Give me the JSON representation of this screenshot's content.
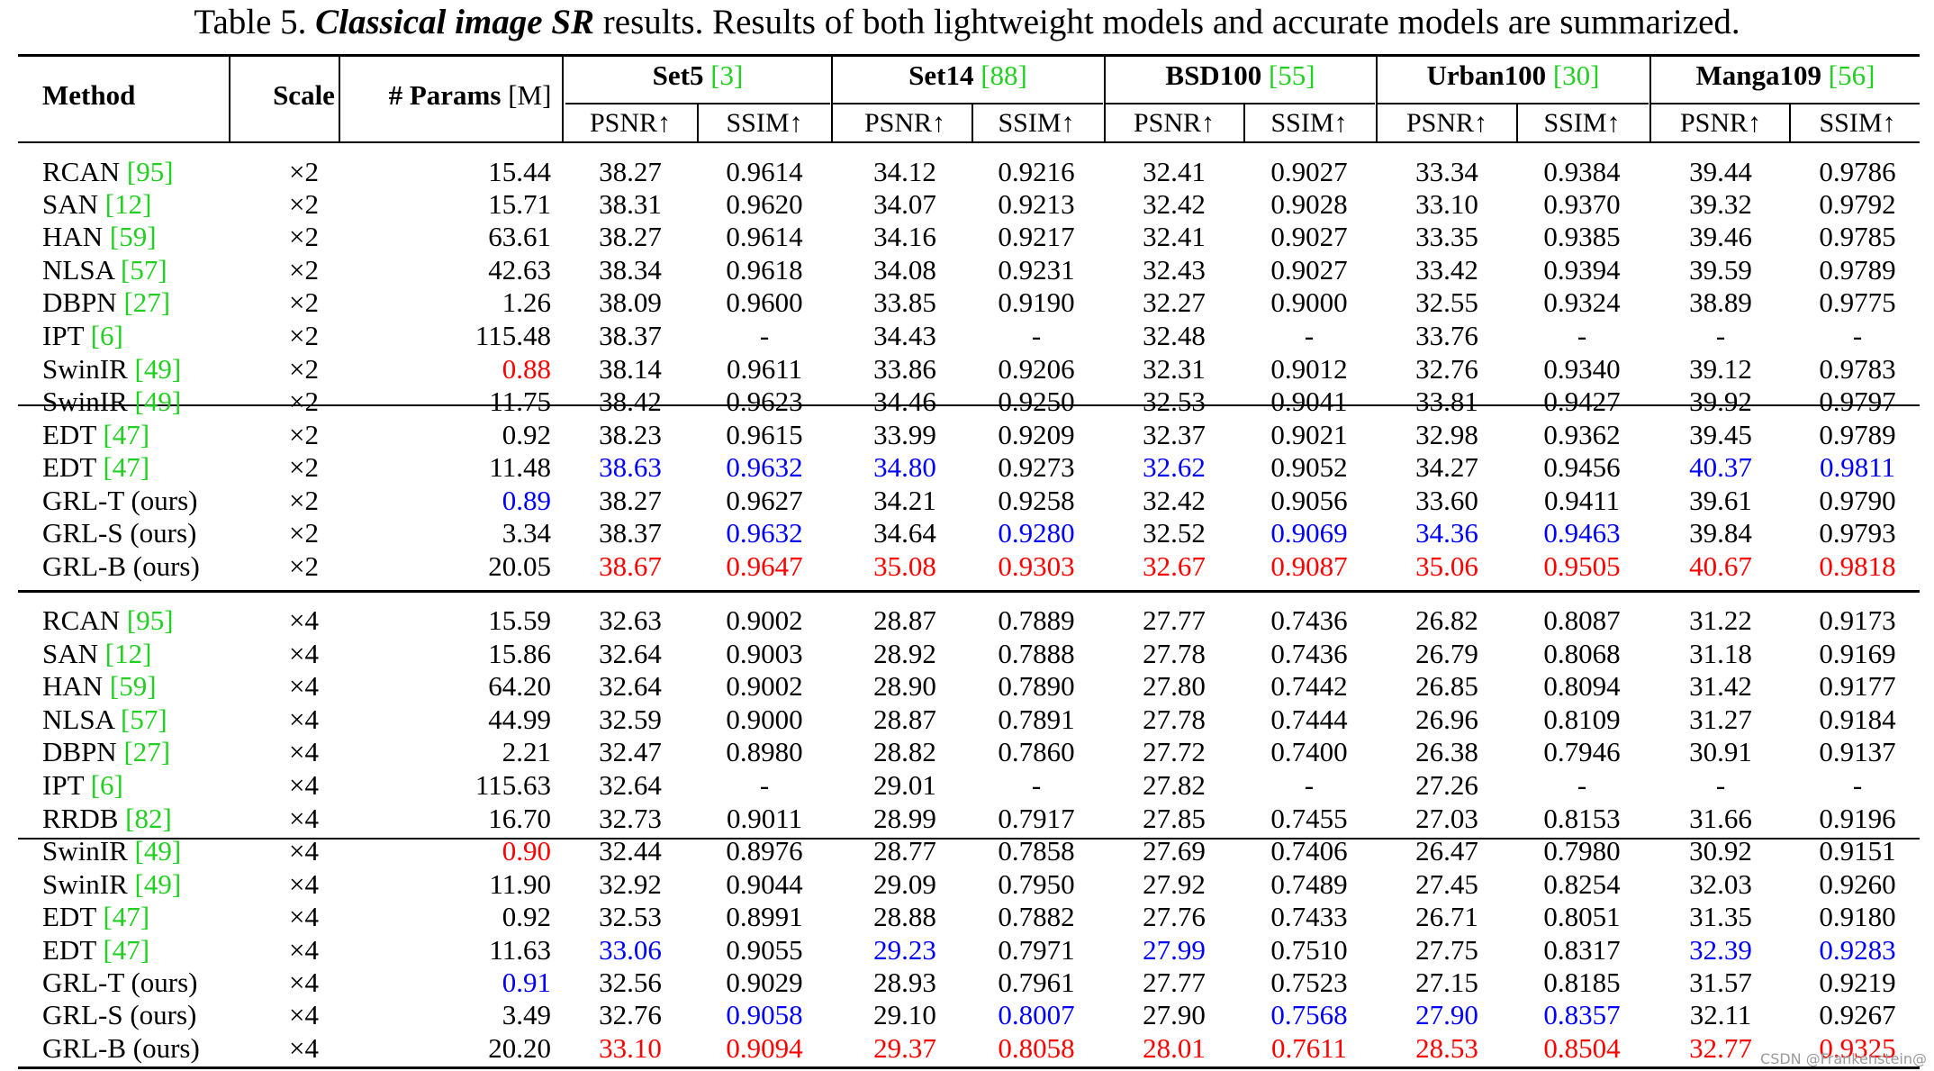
{
  "caption": {
    "prefix": "Table 5. ",
    "emphasis": "Classical image SR",
    "suffix": " results. Results of both lightweight models and accurate models are summarized."
  },
  "header": {
    "method": "Method",
    "scale": "Scale",
    "params_label": "# Params",
    "params_unit": " [M]",
    "datasets": [
      {
        "name": "Set5",
        "cite": "[3]"
      },
      {
        "name": "Set14",
        "cite": "[88]"
      },
      {
        "name": "BSD100",
        "cite": "[55]"
      },
      {
        "name": "Urban100",
        "cite": "[30]"
      },
      {
        "name": "Manga109",
        "cite": "[56]"
      }
    ],
    "psnr": "PSNR↑",
    "ssim": "SSIM↑"
  },
  "colors": {
    "best": "#ff0000",
    "second": "#0000ff",
    "cite": "#22d022"
  },
  "rows": [
    {
      "name": "RCAN ",
      "cite": "[95]",
      "scale": "×2",
      "params": "15.44",
      "vals": [
        "38.27",
        "0.9614",
        "34.12",
        "0.9216",
        "32.41",
        "0.9027",
        "33.34",
        "0.9384",
        "39.44",
        "0.9786"
      ]
    },
    {
      "name": "SAN ",
      "cite": "[12]",
      "scale": "×2",
      "params": "15.71",
      "vals": [
        "38.31",
        "0.9620",
        "34.07",
        "0.9213",
        "32.42",
        "0.9028",
        "33.10",
        "0.9370",
        "39.32",
        "0.9792"
      ]
    },
    {
      "name": "HAN ",
      "cite": "[59]",
      "scale": "×2",
      "params": "63.61",
      "vals": [
        "38.27",
        "0.9614",
        "34.16",
        "0.9217",
        "32.41",
        "0.9027",
        "33.35",
        "0.9385",
        "39.46",
        "0.9785"
      ]
    },
    {
      "name": "NLSA ",
      "cite": "[57]",
      "scale": "×2",
      "params": "42.63",
      "vals": [
        "38.34",
        "0.9618",
        "34.08",
        "0.9231",
        "32.43",
        "0.9027",
        "33.42",
        "0.9394",
        "39.59",
        "0.9789"
      ]
    },
    {
      "name": "DBPN ",
      "cite": "[27]",
      "scale": "×2",
      "params": "1.26",
      "vals": [
        "38.09",
        "0.9600",
        "33.85",
        "0.9190",
        "32.27",
        "0.9000",
        "32.55",
        "0.9324",
        "38.89",
        "0.9775"
      ]
    },
    {
      "name": "IPT ",
      "cite": "[6]",
      "scale": "×2",
      "params": "115.48",
      "vals": [
        "38.37",
        "-",
        "34.43",
        "-",
        "32.48",
        "-",
        "33.76",
        "-",
        "-",
        "-"
      ]
    },
    {
      "name": "SwinIR ",
      "cite": "[49]",
      "scale": "×2",
      "params": "0.88",
      "pc": "red",
      "vals": [
        "38.14",
        "0.9611",
        "33.86",
        "0.9206",
        "32.31",
        "0.9012",
        "32.76",
        "0.9340",
        "39.12",
        "0.9783"
      ]
    },
    {
      "name": "SwinIR ",
      "cite": "[49]",
      "scale": "×2",
      "params": "11.75",
      "vals": [
        "38.42",
        "0.9623",
        "34.46",
        "0.9250",
        "32.53",
        "0.9041",
        "33.81",
        "0.9427",
        "39.92",
        "0.9797"
      ]
    },
    {
      "name": "EDT ",
      "cite": "[47]",
      "scale": "×2",
      "params": "0.92",
      "vals": [
        "38.23",
        "0.9615",
        "33.99",
        "0.9209",
        "32.37",
        "0.9021",
        "32.98",
        "0.9362",
        "39.45",
        "0.9789"
      ]
    },
    {
      "name": "EDT ",
      "cite": "[47]",
      "scale": "×2",
      "params": "11.48",
      "vals": [
        "38.63",
        "0.9632",
        "34.80",
        "0.9273",
        "32.62",
        "0.9052",
        "34.27",
        "0.9456",
        "40.37",
        "0.9811"
      ],
      "colors": [
        "blue",
        "blue",
        "blue",
        "",
        "blue",
        "",
        "",
        "",
        "blue",
        "blue"
      ]
    },
    {
      "name": "GRL-T (ours)",
      "cite": "",
      "scale": "×2",
      "params": "0.89",
      "pc": "blue",
      "vals": [
        "38.27",
        "0.9627",
        "34.21",
        "0.9258",
        "32.42",
        "0.9056",
        "33.60",
        "0.9411",
        "39.61",
        "0.9790"
      ]
    },
    {
      "name": "GRL-S (ours)",
      "cite": "",
      "scale": "×2",
      "params": "3.34",
      "vals": [
        "38.37",
        "0.9632",
        "34.64",
        "0.9280",
        "32.52",
        "0.9069",
        "34.36",
        "0.9463",
        "39.84",
        "0.9793"
      ],
      "colors": [
        "",
        "blue",
        "",
        "blue",
        "",
        "blue",
        "blue",
        "blue",
        "",
        ""
      ]
    },
    {
      "name": "GRL-B (ours)",
      "cite": "",
      "scale": "×2",
      "params": "20.05",
      "vals": [
        "38.67",
        "0.9647",
        "35.08",
        "0.9303",
        "32.67",
        "0.9087",
        "35.06",
        "0.9505",
        "40.67",
        "0.9818"
      ],
      "colors": [
        "red",
        "red",
        "red",
        "red",
        "red",
        "red",
        "red",
        "red",
        "red",
        "red"
      ]
    },
    {
      "name": "RCAN ",
      "cite": "[95]",
      "scale": "×4",
      "params": "15.59",
      "vals": [
        "32.63",
        "0.9002",
        "28.87",
        "0.7889",
        "27.77",
        "0.7436",
        "26.82",
        "0.8087",
        "31.22",
        "0.9173"
      ]
    },
    {
      "name": "SAN ",
      "cite": "[12]",
      "scale": "×4",
      "params": "15.86",
      "vals": [
        "32.64",
        "0.9003",
        "28.92",
        "0.7888",
        "27.78",
        "0.7436",
        "26.79",
        "0.8068",
        "31.18",
        "0.9169"
      ]
    },
    {
      "name": "HAN ",
      "cite": "[59]",
      "scale": "×4",
      "params": "64.20",
      "vals": [
        "32.64",
        "0.9002",
        "28.90",
        "0.7890",
        "27.80",
        "0.7442",
        "26.85",
        "0.8094",
        "31.42",
        "0.9177"
      ]
    },
    {
      "name": "NLSA ",
      "cite": "[57]",
      "scale": "×4",
      "params": "44.99",
      "vals": [
        "32.59",
        "0.9000",
        "28.87",
        "0.7891",
        "27.78",
        "0.7444",
        "26.96",
        "0.8109",
        "31.27",
        "0.9184"
      ]
    },
    {
      "name": "DBPN ",
      "cite": "[27]",
      "scale": "×4",
      "params": "2.21",
      "vals": [
        "32.47",
        "0.8980",
        "28.82",
        "0.7860",
        "27.72",
        "0.7400",
        "26.38",
        "0.7946",
        "30.91",
        "0.9137"
      ]
    },
    {
      "name": "IPT ",
      "cite": "[6]",
      "scale": "×4",
      "params": "115.63",
      "vals": [
        "32.64",
        "-",
        "29.01",
        "-",
        "27.82",
        "-",
        "27.26",
        "-",
        "-",
        "-"
      ]
    },
    {
      "name": "RRDB ",
      "cite": "[82]",
      "scale": "×4",
      "params": "16.70",
      "vals": [
        "32.73",
        "0.9011",
        "28.99",
        "0.7917",
        "27.85",
        "0.7455",
        "27.03",
        "0.8153",
        "31.66",
        "0.9196"
      ]
    },
    {
      "name": "SwinIR ",
      "cite": "[49]",
      "scale": "×4",
      "params": "0.90",
      "pc": "red",
      "vals": [
        "32.44",
        "0.8976",
        "28.77",
        "0.7858",
        "27.69",
        "0.7406",
        "26.47",
        "0.7980",
        "30.92",
        "0.9151"
      ]
    },
    {
      "name": "SwinIR ",
      "cite": "[49]",
      "scale": "×4",
      "params": "11.90",
      "vals": [
        "32.92",
        "0.9044",
        "29.09",
        "0.7950",
        "27.92",
        "0.7489",
        "27.45",
        "0.8254",
        "32.03",
        "0.9260"
      ]
    },
    {
      "name": "EDT ",
      "cite": "[47]",
      "scale": "×4",
      "params": "0.92",
      "vals": [
        "32.53",
        "0.8991",
        "28.88",
        "0.7882",
        "27.76",
        "0.7433",
        "26.71",
        "0.8051",
        "31.35",
        "0.9180"
      ]
    },
    {
      "name": "EDT ",
      "cite": "[47]",
      "scale": "×4",
      "params": "11.63",
      "vals": [
        "33.06",
        "0.9055",
        "29.23",
        "0.7971",
        "27.99",
        "0.7510",
        "27.75",
        "0.8317",
        "32.39",
        "0.9283"
      ],
      "colors": [
        "blue",
        "",
        "blue",
        "",
        "blue",
        "",
        "",
        "",
        "blue",
        "blue"
      ]
    },
    {
      "name": "GRL-T (ours)",
      "cite": "",
      "scale": "×4",
      "params": "0.91",
      "pc": "blue",
      "vals": [
        "32.56",
        "0.9029",
        "28.93",
        "0.7961",
        "27.77",
        "0.7523",
        "27.15",
        "0.8185",
        "31.57",
        "0.9219"
      ]
    },
    {
      "name": "GRL-S (ours)",
      "cite": "",
      "scale": "×4",
      "params": "3.49",
      "vals": [
        "32.76",
        "0.9058",
        "29.10",
        "0.8007",
        "27.90",
        "0.7568",
        "27.90",
        "0.8357",
        "32.11",
        "0.9267"
      ],
      "colors": [
        "",
        "blue",
        "",
        "blue",
        "",
        "blue",
        "blue",
        "blue",
        "",
        ""
      ]
    },
    {
      "name": "GRL-B (ours)",
      "cite": "",
      "scale": "×4",
      "params": "20.20",
      "vals": [
        "33.10",
        "0.9094",
        "29.37",
        "0.8058",
        "28.01",
        "0.7611",
        "28.53",
        "0.8504",
        "32.77",
        "0.9325"
      ],
      "colors": [
        "red",
        "red",
        "red",
        "red",
        "red",
        "red",
        "red",
        "red",
        "red",
        "red"
      ]
    }
  ],
  "watermark": "CSDN @Frankenstein@"
}
